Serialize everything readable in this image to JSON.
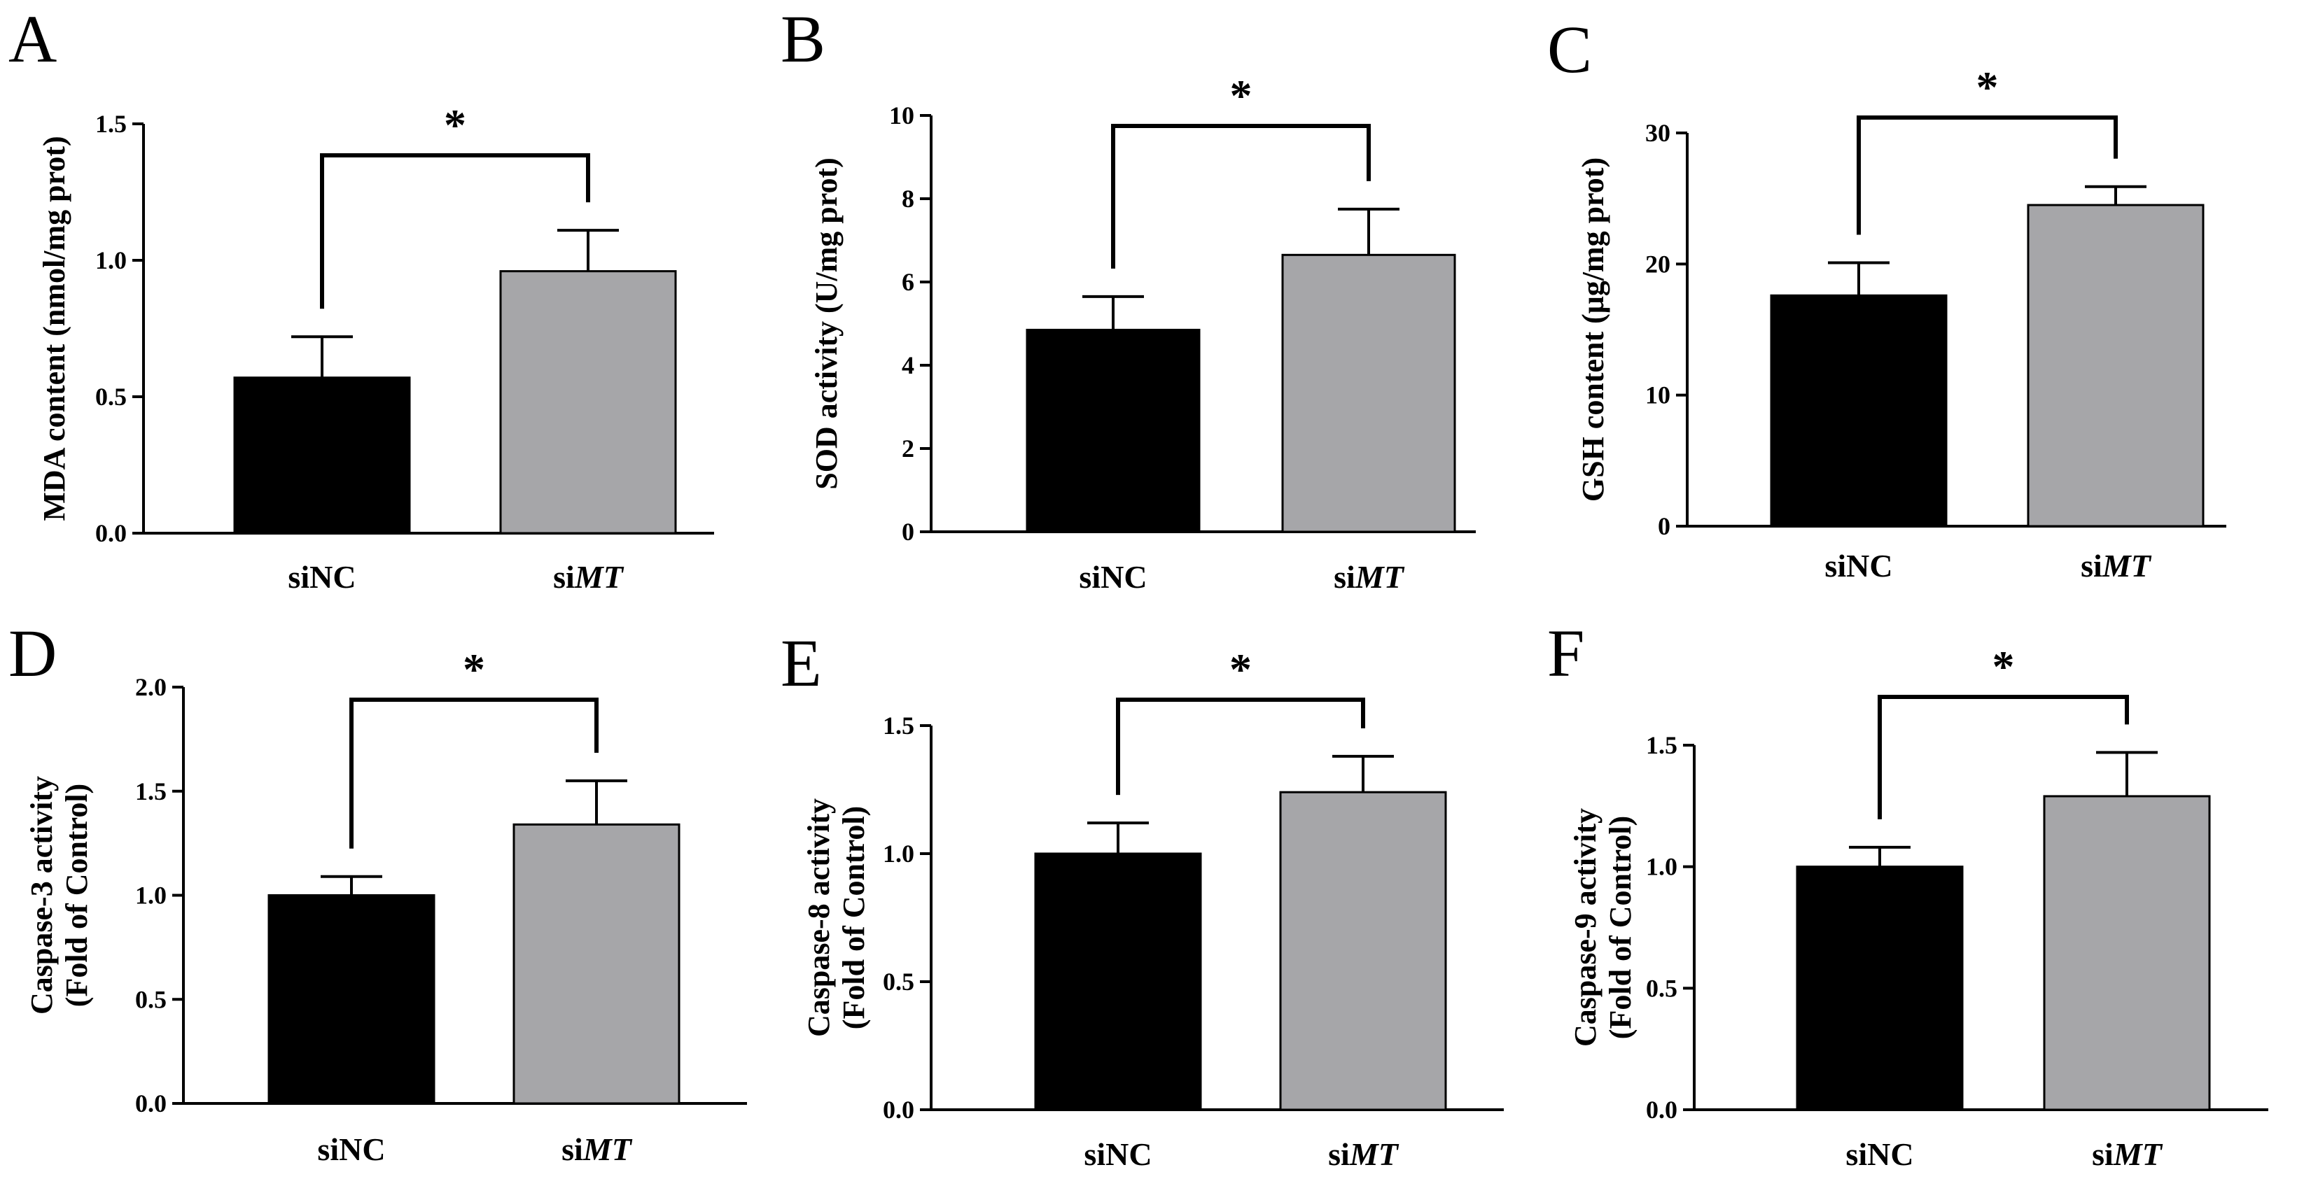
{
  "figure": {
    "colors": {
      "siNC": "#000000",
      "siMT": "#a6a6a9",
      "axis": "#000000"
    }
  },
  "chart_data": [
    {
      "type": "bar",
      "panel": "A",
      "title": "",
      "ylabel_lines": [
        "MDA content (nmol/mg prot)"
      ],
      "categories": [
        {
          "prefix": "si",
          "name": "NC",
          "italic": false
        },
        {
          "prefix": "si",
          "name": "MT",
          "italic": true
        }
      ],
      "category_labels": [
        "siNC",
        "siMT"
      ],
      "values": [
        0.57,
        0.96
      ],
      "errors": [
        0.15,
        0.15
      ],
      "ylim": [
        0,
        1.5
      ],
      "yticks": [
        0.0,
        0.5,
        1.0,
        1.5
      ],
      "ytick_labels": [
        "0.0",
        "0.5",
        "1.0",
        "1.5"
      ],
      "significance": "*",
      "bracket_top": 1.38
    },
    {
      "type": "bar",
      "panel": "B",
      "title": "",
      "ylabel_lines": [
        "SOD activity (U/mg prot)"
      ],
      "categories": [
        {
          "prefix": "si",
          "name": "NC",
          "italic": false
        },
        {
          "prefix": "si",
          "name": "MT",
          "italic": true
        }
      ],
      "category_labels": [
        "siNC",
        "siMT"
      ],
      "values": [
        4.85,
        6.65
      ],
      "errors": [
        0.8,
        1.1
      ],
      "ylim": [
        0,
        10
      ],
      "yticks": [
        0,
        2,
        4,
        6,
        8,
        10
      ],
      "ytick_labels": [
        "0",
        "2",
        "4",
        "6",
        "8",
        "10"
      ],
      "significance": "*",
      "bracket_top": 9.8
    },
    {
      "type": "bar",
      "panel": "C",
      "title": "",
      "ylabel_lines": [
        "GSH content (μg/mg prot)"
      ],
      "categories": [
        {
          "prefix": "si",
          "name": "NC",
          "italic": false
        },
        {
          "prefix": "si",
          "name": "MT",
          "italic": true
        }
      ],
      "category_labels": [
        "siNC",
        "siMT"
      ],
      "values": [
        17.6,
        24.5
      ],
      "errors": [
        2.5,
        1.4
      ],
      "ylim": [
        0,
        30
      ],
      "yticks": [
        0,
        10,
        20,
        30
      ],
      "ytick_labels": [
        "0",
        "10",
        "20",
        "30"
      ],
      "significance": "*",
      "bracket_top": 31.5
    },
    {
      "type": "bar",
      "panel": "D",
      "title": "",
      "ylabel_lines": [
        "Caspase-3 activity",
        "(Fold of Control)"
      ],
      "categories": [
        {
          "prefix": "si",
          "name": "NC",
          "italic": false
        },
        {
          "prefix": "si",
          "name": "MT",
          "italic": true
        }
      ],
      "category_labels": [
        "siNC",
        "siMT"
      ],
      "values": [
        1.0,
        1.34
      ],
      "errors": [
        0.09,
        0.21
      ],
      "ylim": [
        0,
        2.0
      ],
      "yticks": [
        0.0,
        0.5,
        1.0,
        1.5,
        2.0
      ],
      "ytick_labels": [
        "0.0",
        "0.5",
        "1.0",
        "1.5",
        "2.0"
      ],
      "significance": "*",
      "bracket_top": 1.93
    },
    {
      "type": "bar",
      "panel": "E",
      "title": "",
      "ylabel_lines": [
        "Caspase-8 activity",
        "(Fold of Control)"
      ],
      "categories": [
        {
          "prefix": "si",
          "name": "NC",
          "italic": false
        },
        {
          "prefix": "si",
          "name": "MT",
          "italic": true
        }
      ],
      "category_labels": [
        "siNC",
        "siMT"
      ],
      "values": [
        1.0,
        1.24
      ],
      "errors": [
        0.12,
        0.14
      ],
      "ylim": [
        0,
        1.5
      ],
      "yticks": [
        0.0,
        0.5,
        1.0,
        1.5
      ],
      "ytick_labels": [
        "0.0",
        "0.5",
        "1.0",
        "1.5"
      ],
      "significance": "*",
      "bracket_top": 1.6
    },
    {
      "type": "bar",
      "panel": "F",
      "title": "",
      "ylabel_lines": [
        "Caspase-9 activity",
        "(Fold of Control)"
      ],
      "categories": [
        {
          "prefix": "si",
          "name": "NC",
          "italic": false
        },
        {
          "prefix": "si",
          "name": "MT",
          "italic": true
        }
      ],
      "category_labels": [
        "siNC",
        "siMT"
      ],
      "values": [
        1.0,
        1.29
      ],
      "errors": [
        0.08,
        0.18
      ],
      "ylim": [
        0,
        1.5
      ],
      "yticks": [
        0.0,
        0.5,
        1.0,
        1.5
      ],
      "ytick_labels": [
        "0.0",
        "0.5",
        "1.0",
        "1.5"
      ],
      "significance": "*",
      "bracket_top": 1.72
    }
  ]
}
